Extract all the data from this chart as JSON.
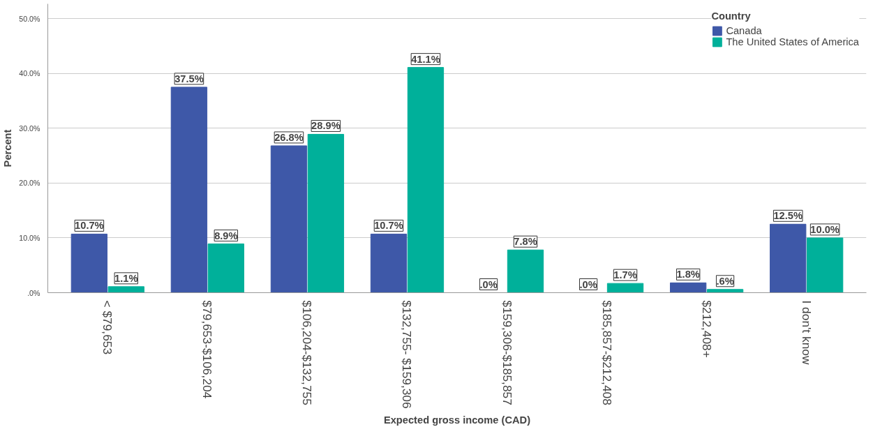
{
  "chart_data": {
    "type": "bar",
    "xlabel": "Expected gross income (CAD)",
    "ylabel": "Percent",
    "legend_title": "Country",
    "categories": [
      "< $79,653",
      "$79,653-$106,204",
      "$106,204-$132,755",
      "$132,755- $159,306",
      "$159,306-$185,857",
      "$185,857-$212,408",
      "$212,408+",
      "I don't know"
    ],
    "series": [
      {
        "name": "Canada",
        "color": "#3e58a8",
        "values": [
          10.7,
          37.5,
          26.8,
          10.7,
          0.0,
          0.0,
          1.8,
          12.5
        ],
        "value_labels": [
          "10.7%",
          "37.5%",
          "26.8%",
          "10.7%",
          ".0%",
          ".0%",
          "1.8%",
          "12.5%"
        ]
      },
      {
        "name": "The United States of America",
        "color": "#00b09a",
        "values": [
          1.1,
          8.9,
          28.9,
          41.1,
          7.8,
          1.7,
          0.6,
          10.0
        ],
        "value_labels": [
          "1.1%",
          "8.9%",
          "28.9%",
          "41.1%",
          "7.8%",
          "1.7%",
          ".6%",
          "10.0%"
        ]
      }
    ],
    "ylim": [
      0,
      52.7
    ],
    "yticks": [
      {
        "value": 0,
        "label": ".0%"
      },
      {
        "value": 10,
        "label": "10.0%"
      },
      {
        "value": 20,
        "label": "20.0%"
      },
      {
        "value": 30,
        "label": "30.0%"
      },
      {
        "value": 40,
        "label": "40.0%"
      },
      {
        "value": 50,
        "label": "50.0%"
      }
    ],
    "grid": "y",
    "legend": "top right"
  }
}
